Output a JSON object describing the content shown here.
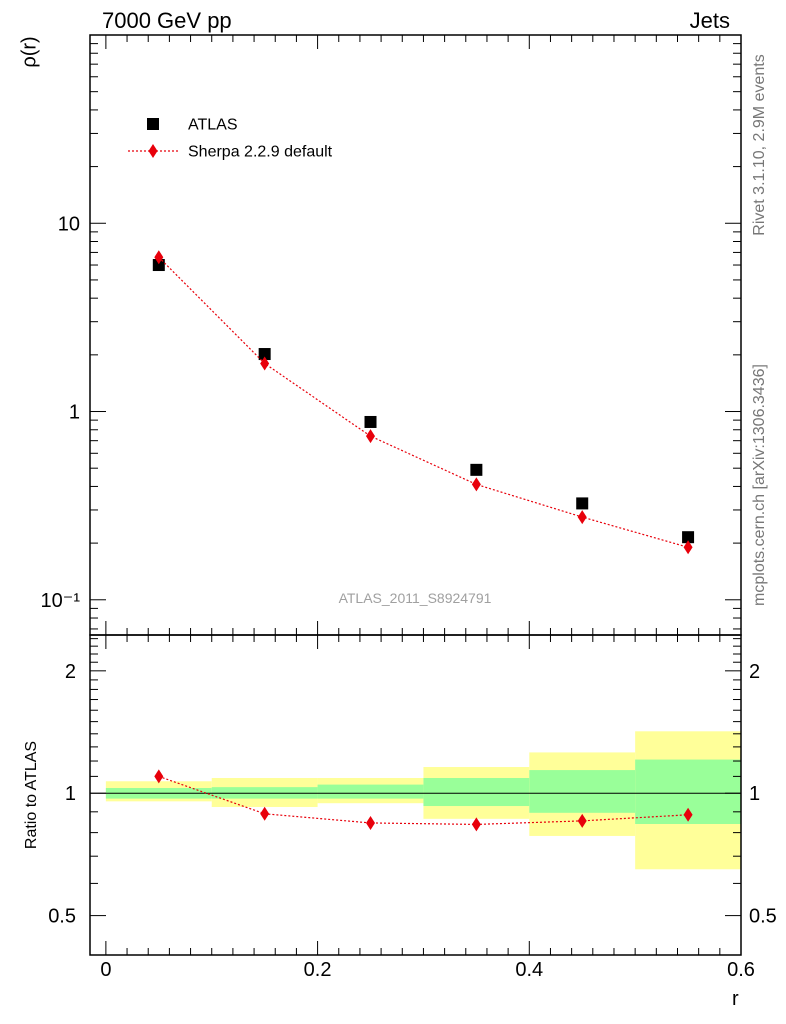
{
  "header": {
    "left": "7000 GeV pp",
    "right": "Jets"
  },
  "side_labels": {
    "rivet": "Rivet 3.1.10,  2.9M events",
    "mcplots": "mcplots.cern.ch [arXiv:1306.3436]"
  },
  "watermark": "ATLAS_2011_S8924791",
  "chart_data": [
    {
      "type": "scatter",
      "panel": "main",
      "ylabel": "ρ(r)",
      "yscale": "log",
      "ylim": [
        0.065,
        100
      ],
      "xlim": [
        -0.015,
        0.6
      ],
      "y_tick_labels": [
        "10",
        "1",
        "10⁻¹"
      ],
      "legend_position": "top-left",
      "series": [
        {
          "name": "ATLAS",
          "marker": "square",
          "color": "#000000",
          "x": [
            0.05,
            0.15,
            0.25,
            0.35,
            0.45,
            0.55
          ],
          "y": [
            6.0,
            2.02,
            0.88,
            0.49,
            0.325,
            0.215
          ]
        },
        {
          "name": "Sherpa 2.2.9 default",
          "marker": "diamond",
          "line": "dotted",
          "color": "#e8000b",
          "x": [
            0.05,
            0.15,
            0.25,
            0.35,
            0.45,
            0.55
          ],
          "y": [
            6.6,
            1.8,
            0.74,
            0.41,
            0.275,
            0.19
          ]
        }
      ]
    },
    {
      "type": "scatter",
      "panel": "ratio",
      "ylabel": "Ratio to ATLAS",
      "xlabel": "r",
      "yscale": "log",
      "ylim": [
        0.4,
        2.45
      ],
      "xlim": [
        -0.015,
        0.6
      ],
      "y_tick_labels": [
        "2",
        "1",
        "0.5"
      ],
      "x_tick_labels": [
        "0",
        "0.2",
        "0.4",
        "0.6"
      ],
      "bands": {
        "x_edges": [
          0.0,
          0.1,
          0.2,
          0.3,
          0.4,
          0.5,
          0.6
        ],
        "inner_color": "#99ff99",
        "outer_color": "#ffff99",
        "inner_lo": [
          0.97,
          0.97,
          0.97,
          0.93,
          0.895,
          0.84
        ],
        "inner_hi": [
          1.03,
          1.035,
          1.05,
          1.09,
          1.14,
          1.21
        ],
        "outer_lo": [
          0.955,
          0.925,
          0.945,
          0.865,
          0.785,
          0.65
        ],
        "outer_hi": [
          1.07,
          1.09,
          1.09,
          1.16,
          1.26,
          1.42
        ]
      },
      "reference": 1,
      "series": [
        {
          "name": "Sherpa 2.2.9 default",
          "marker": "diamond",
          "line": "dotted",
          "color": "#e8000b",
          "x": [
            0.05,
            0.15,
            0.25,
            0.35,
            0.45,
            0.55
          ],
          "y": [
            1.1,
            0.89,
            0.845,
            0.838,
            0.855,
            0.885
          ]
        }
      ]
    }
  ]
}
